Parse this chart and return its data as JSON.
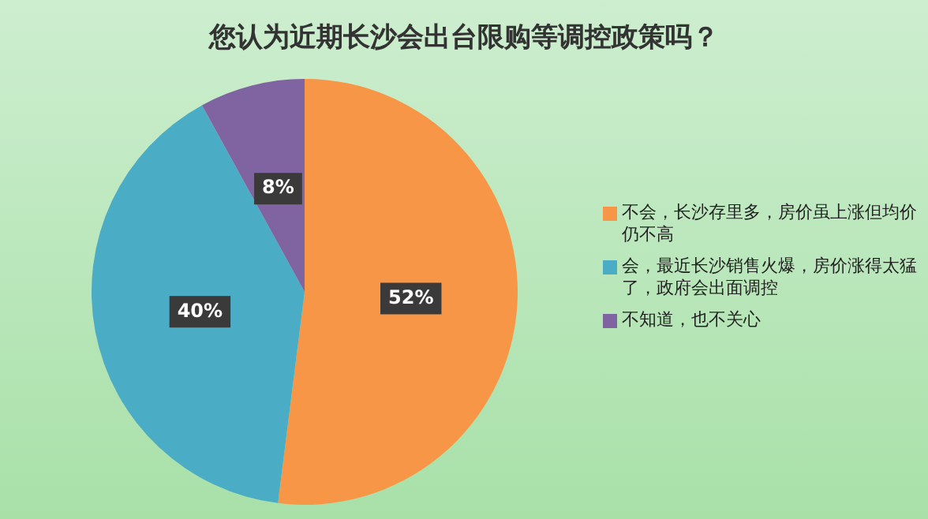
{
  "chart_data": {
    "type": "pie",
    "title": "您认为近期长沙会出台限购等调控政策吗？",
    "categories": [
      "不会，长沙存里多，房价虽上涨但均价仍不高",
      "会，最近长沙销售火爆，房价涨得太猛了，政府会出面调控",
      "不知道，也不关心"
    ],
    "values": [
      52,
      40,
      8
    ],
    "colors": [
      "#f79646",
      "#4bacc6",
      "#8064a2"
    ],
    "value_labels": [
      "52%",
      "40%",
      "8%"
    ],
    "legend": "right"
  }
}
